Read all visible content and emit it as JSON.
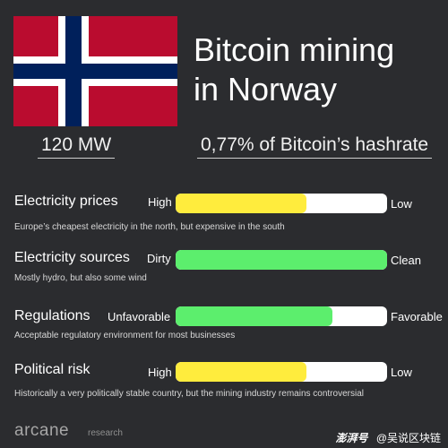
{
  "header": {
    "title_line1": "Bitcoin mining",
    "title_line2": "in Norway",
    "flag_icon": "norway-flag-icon",
    "flag_colors": {
      "red": "#ba0c2f",
      "white": "#ffffff",
      "blue": "#00205b"
    }
  },
  "stats": {
    "power": "120 MW",
    "hashrate": "0,77% of Bitcoin’s hashrate"
  },
  "rows": [
    {
      "title": "Electricity prices",
      "left_label": "High",
      "right_label": "Low",
      "fill_fraction": 0.62,
      "fill_color": "#ffec3d",
      "description": "Europe’s cheapest electricity in the north, but expensive in the south"
    },
    {
      "title": "Electricity sources",
      "left_label": "Dirty",
      "right_label": "Clean",
      "fill_fraction": 1.0,
      "fill_color": "#5cee6d",
      "description": "Mostly hydro, but also some wind"
    },
    {
      "title": "Regulations",
      "left_label": "Unfavorable",
      "right_label": "Favorable",
      "fill_fraction": 0.74,
      "fill_color": "#5cee6d",
      "description": "Acceptable regulatory environment for most businesses"
    },
    {
      "title": "Political risk",
      "left_label": "High",
      "right_label": "Low",
      "fill_fraction": 0.62,
      "fill_color": "#ffec3d",
      "description": "Historically a very politically stable country, but the mining industry remains controversial"
    }
  ],
  "footer": {
    "brand": "arcane",
    "brand_sub": "research",
    "watermark_1": "澎湃号",
    "watermark_2": "@吴说区块链"
  }
}
